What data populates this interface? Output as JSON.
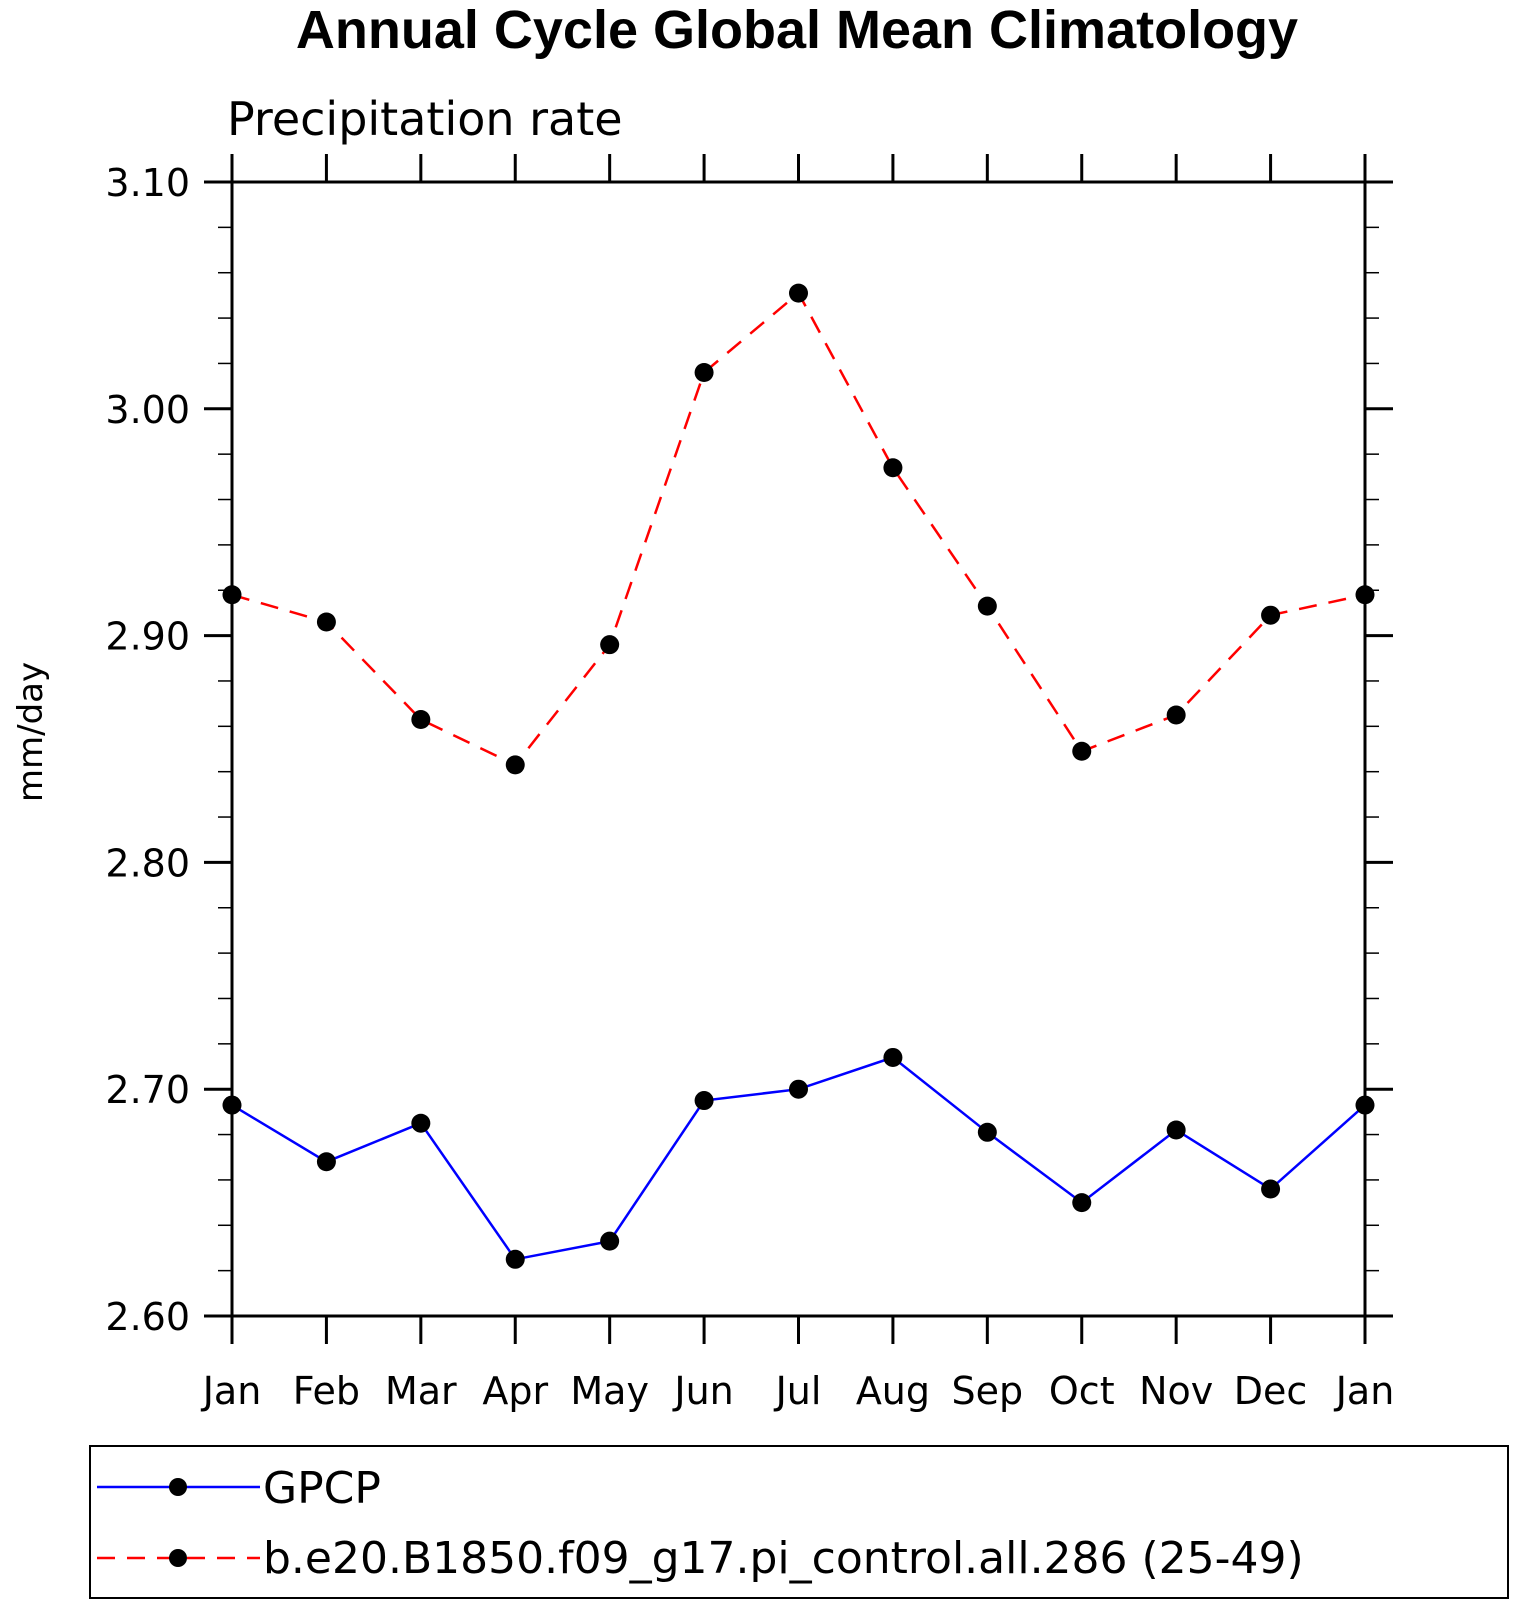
{
  "chart_data": {
    "type": "line",
    "title": "Annual Cycle Global Mean Climatology",
    "subtitle": "Precipitation rate",
    "xlabel": "",
    "ylabel": "mm/day",
    "categories": [
      "Jan",
      "Feb",
      "Mar",
      "Apr",
      "May",
      "Jun",
      "Jul",
      "Aug",
      "Sep",
      "Oct",
      "Nov",
      "Dec",
      "Jan"
    ],
    "ylim": [
      2.6,
      3.1
    ],
    "yticks": [
      "2.60",
      "2.70",
      "2.80",
      "2.90",
      "3.00",
      "3.10"
    ],
    "grid": false,
    "legend_position": "bottom",
    "series": [
      {
        "name": "GPCP",
        "color": "#0000ff",
        "line_style": "solid",
        "marker": "filled-circle",
        "values": [
          2.693,
          2.668,
          2.685,
          2.625,
          2.633,
          2.695,
          2.7,
          2.714,
          2.681,
          2.65,
          2.682,
          2.656,
          2.693
        ]
      },
      {
        "name": "b.e20.B1850.f09_g17.pi_control.all.286 (25-49)",
        "color": "#ff0000",
        "line_style": "dashed",
        "marker": "filled-circle",
        "values": [
          2.918,
          2.906,
          2.863,
          2.843,
          2.896,
          3.016,
          3.051,
          2.974,
          2.913,
          2.849,
          2.865,
          2.909,
          2.918
        ]
      }
    ]
  }
}
